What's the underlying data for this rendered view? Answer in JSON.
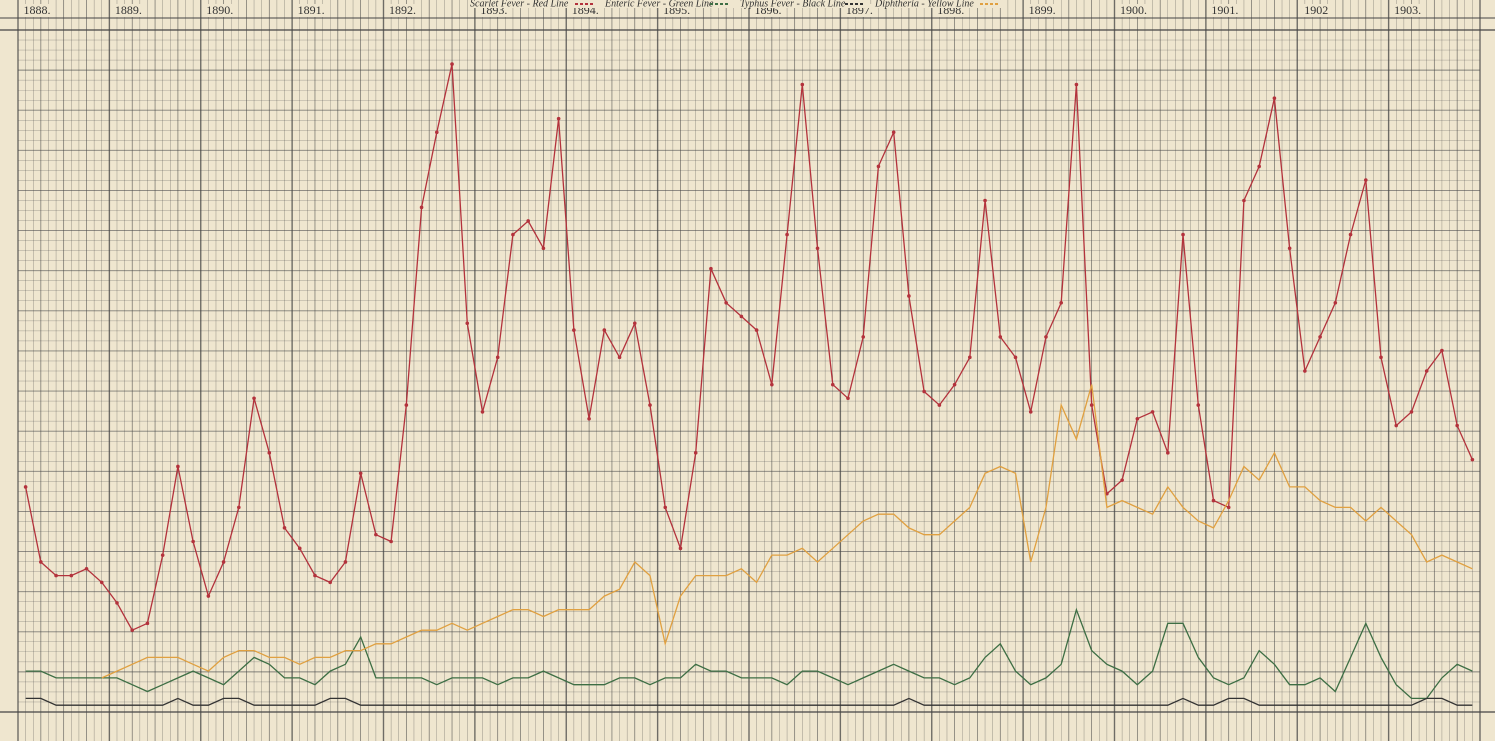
{
  "chart_data": {
    "type": "line",
    "categories": [
      "1888.",
      "1889.",
      "1890.",
      "1891.",
      "1892.",
      "1893.",
      "1894.",
      "1895.",
      "1896.",
      "1897.",
      "1898.",
      "1899.",
      "1900.",
      "1901.",
      "1902",
      "1903."
    ],
    "ylim": [
      0,
      100
    ],
    "grid": true,
    "series": [
      {
        "name": "Scarlet Fever - Red Line",
        "color": "#b3323c",
        "dots": true,
        "values": [
          [
            33,
            22,
            20,
            20,
            21,
            19
          ],
          [
            16,
            12,
            13,
            23,
            36,
            25
          ],
          [
            17,
            22,
            30,
            46,
            38,
            27
          ],
          [
            24,
            20,
            19,
            22,
            35,
            26
          ],
          [
            25,
            45,
            74,
            85,
            95,
            57
          ],
          [
            44,
            52,
            70,
            72,
            68,
            87
          ],
          [
            56,
            43,
            56,
            52,
            57,
            45
          ],
          [
            30,
            24,
            38,
            65,
            60,
            58
          ],
          [
            56,
            48,
            70,
            92,
            68,
            48
          ],
          [
            46,
            55,
            80,
            85,
            61,
            47
          ],
          [
            45,
            48,
            52,
            75,
            55,
            52
          ],
          [
            44,
            55,
            60,
            92,
            45,
            32
          ],
          [
            34,
            43,
            44,
            38,
            70,
            45
          ],
          [
            31,
            30,
            75,
            80,
            90,
            68
          ],
          [
            50,
            55,
            60,
            70,
            78,
            52
          ],
          [
            42,
            44,
            50,
            53,
            42,
            37
          ]
        ]
      },
      {
        "name": "Enteric Fever - Green Line",
        "color": "#3d6e44",
        "dots": false,
        "values": [
          [
            6,
            6,
            5,
            5,
            5,
            5
          ],
          [
            5,
            4,
            3,
            4,
            5,
            6
          ],
          [
            5,
            4,
            6,
            8,
            7,
            5
          ],
          [
            5,
            4,
            6,
            7,
            11,
            5
          ],
          [
            5,
            5,
            5,
            4,
            5,
            5
          ],
          [
            5,
            4,
            5,
            5,
            6,
            5
          ],
          [
            4,
            4,
            4,
            5,
            5,
            4
          ],
          [
            5,
            5,
            7,
            6,
            6,
            5
          ],
          [
            5,
            5,
            4,
            6,
            6,
            5
          ],
          [
            4,
            5,
            6,
            7,
            6,
            5
          ],
          [
            5,
            4,
            5,
            8,
            10,
            6
          ],
          [
            4,
            5,
            7,
            15,
            9,
            7
          ],
          [
            6,
            4,
            6,
            13,
            13,
            8
          ],
          [
            5,
            4,
            5,
            9,
            7,
            4
          ],
          [
            4,
            5,
            3,
            8,
            13,
            8
          ],
          [
            4,
            2,
            2,
            5,
            7,
            6
          ]
        ]
      },
      {
        "name": "Typhus Fever - Black Line",
        "color": "#333333",
        "dots": false,
        "values": [
          [
            2,
            2,
            1,
            1,
            1,
            1
          ],
          [
            1,
            1,
            1,
            1,
            2,
            1
          ],
          [
            1,
            2,
            2,
            1,
            1,
            1
          ],
          [
            1,
            1,
            2,
            2,
            1,
            1
          ],
          [
            1,
            1,
            1,
            1,
            1,
            1
          ],
          [
            1,
            1,
            1,
            1,
            1,
            1
          ],
          [
            1,
            1,
            1,
            1,
            1,
            1
          ],
          [
            1,
            1,
            1,
            1,
            1,
            1
          ],
          [
            1,
            1,
            1,
            1,
            1,
            1
          ],
          [
            1,
            1,
            1,
            1,
            2,
            1
          ],
          [
            1,
            1,
            1,
            1,
            1,
            1
          ],
          [
            1,
            1,
            1,
            1,
            1,
            1
          ],
          [
            1,
            1,
            1,
            1,
            2,
            1
          ],
          [
            1,
            2,
            2,
            1,
            1,
            1
          ],
          [
            1,
            1,
            1,
            1,
            1,
            1
          ],
          [
            1,
            1,
            2,
            2,
            1,
            1
          ]
        ]
      },
      {
        "name": "Diphtheria - Yellow Line",
        "color": "#e0a040",
        "dots": false,
        "values": [
          [
            null,
            null,
            null,
            null,
            null,
            5
          ],
          [
            6,
            7,
            8,
            8,
            8,
            7
          ],
          [
            6,
            8,
            9,
            9,
            8,
            8
          ],
          [
            7,
            8,
            8,
            9,
            9,
            10
          ],
          [
            10,
            11,
            12,
            12,
            13,
            12
          ],
          [
            13,
            14,
            15,
            15,
            14,
            15
          ],
          [
            15,
            15,
            17,
            18,
            22,
            20
          ],
          [
            10,
            17,
            20,
            20,
            20,
            21
          ],
          [
            19,
            23,
            23,
            24,
            22,
            24
          ],
          [
            26,
            28,
            29,
            29,
            27,
            26
          ],
          [
            26,
            28,
            30,
            35,
            36,
            35
          ],
          [
            22,
            30,
            45,
            40,
            48,
            30
          ],
          [
            31,
            30,
            29,
            33,
            30,
            28
          ],
          [
            27,
            31,
            36,
            34,
            38,
            33
          ],
          [
            33,
            31,
            30,
            30,
            28,
            30
          ],
          [
            28,
            26,
            22,
            23,
            22,
            21
          ]
        ]
      }
    ]
  }
}
